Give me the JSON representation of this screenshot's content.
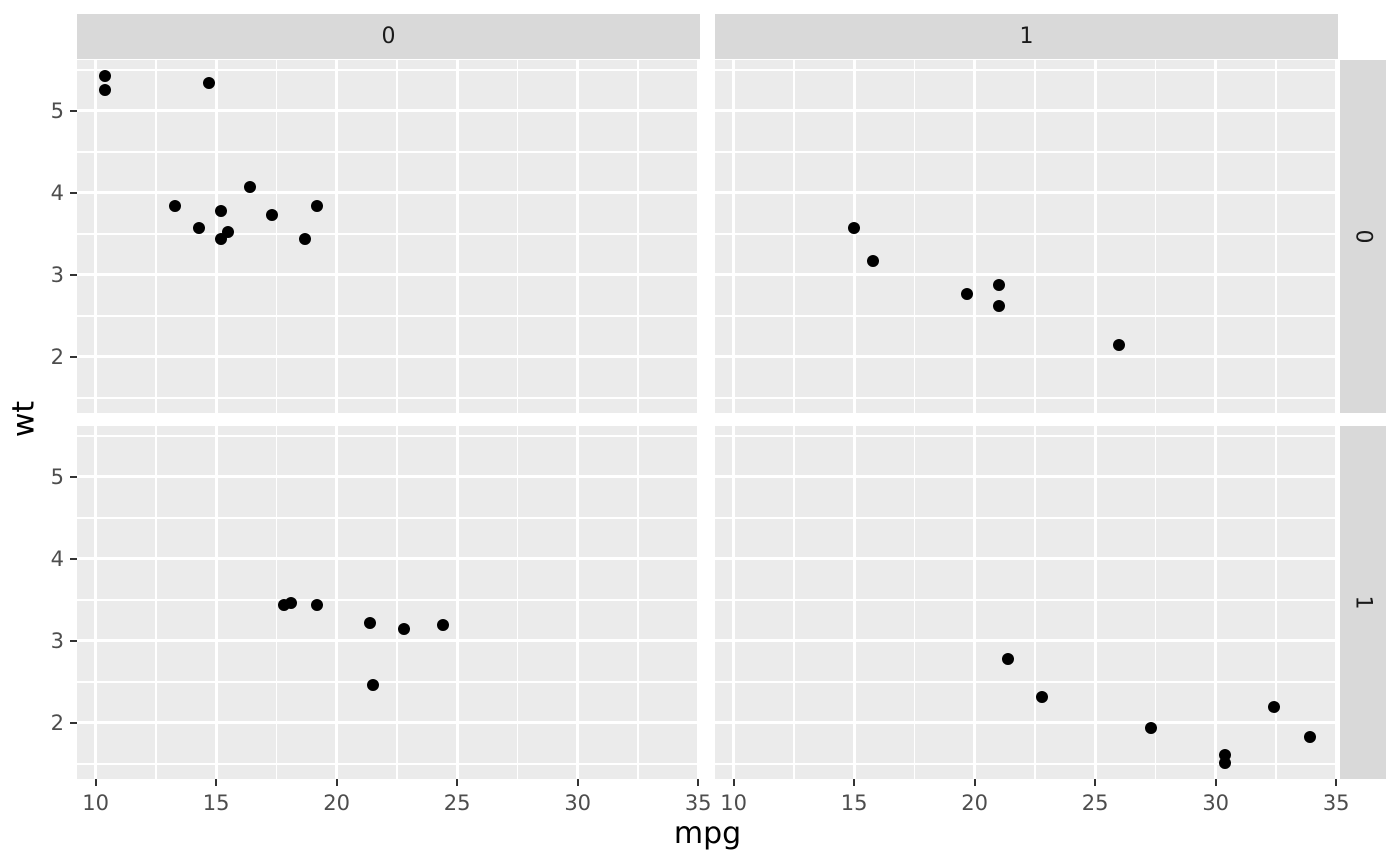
{
  "chart_data": {
    "type": "scatter",
    "title": "",
    "xlabel": "mpg",
    "ylabel": "wt",
    "facet_col_labels": [
      "0",
      "1"
    ],
    "facet_row_labels": [
      "0",
      "1"
    ],
    "xlim": [
      9.225,
      35.075
    ],
    "ylim": [
      1.317,
      5.62
    ],
    "x_major_ticks": [
      10,
      15,
      20,
      25,
      30,
      35
    ],
    "y_major_ticks": [
      2,
      3,
      4,
      5
    ],
    "x_minor_ticks": [
      12.5,
      17.5,
      22.5,
      27.5,
      32.5
    ],
    "y_minor_ticks": [
      1.5,
      2.5,
      3.5,
      4.5,
      5.5
    ],
    "grid": "white major+minor on grey panels",
    "legend_position": "none",
    "panels": [
      {
        "row": 0,
        "col": 0,
        "points": [
          [
            10.4,
            5.25
          ],
          [
            10.4,
            5.424
          ],
          [
            13.3,
            3.84
          ],
          [
            14.3,
            3.57
          ],
          [
            14.7,
            5.345
          ],
          [
            15.2,
            3.78
          ],
          [
            15.2,
            3.435
          ],
          [
            15.5,
            3.52
          ],
          [
            16.4,
            4.07
          ],
          [
            17.3,
            3.73
          ],
          [
            18.7,
            3.44
          ],
          [
            19.2,
            3.845
          ]
        ]
      },
      {
        "row": 0,
        "col": 1,
        "points": [
          [
            15.0,
            3.57
          ],
          [
            15.8,
            3.17
          ],
          [
            19.7,
            2.77
          ],
          [
            21.0,
            2.62
          ],
          [
            21.0,
            2.875
          ],
          [
            26.0,
            2.14
          ]
        ]
      },
      {
        "row": 1,
        "col": 0,
        "points": [
          [
            17.8,
            3.44
          ],
          [
            18.1,
            3.46
          ],
          [
            19.2,
            3.44
          ],
          [
            21.4,
            3.215
          ],
          [
            21.5,
            2.465
          ],
          [
            22.8,
            3.15
          ],
          [
            24.4,
            3.19
          ]
        ]
      },
      {
        "row": 1,
        "col": 1,
        "points": [
          [
            21.4,
            2.78
          ],
          [
            22.8,
            2.32
          ],
          [
            27.3,
            1.935
          ],
          [
            30.4,
            1.615
          ],
          [
            30.4,
            1.513
          ],
          [
            32.4,
            2.2
          ],
          [
            33.9,
            1.835
          ]
        ]
      }
    ]
  },
  "style": {
    "panel_bg": "#EBEBEB",
    "strip_bg": "#D9D9D9",
    "grid_color": "#FFFFFF",
    "point_color": "#000000",
    "axis_text_color": "#4D4D4D",
    "strip_text_color": "#1A1A1A",
    "tick_color": "#333333",
    "title_color": "#000000",
    "background": "#FFFFFF"
  }
}
